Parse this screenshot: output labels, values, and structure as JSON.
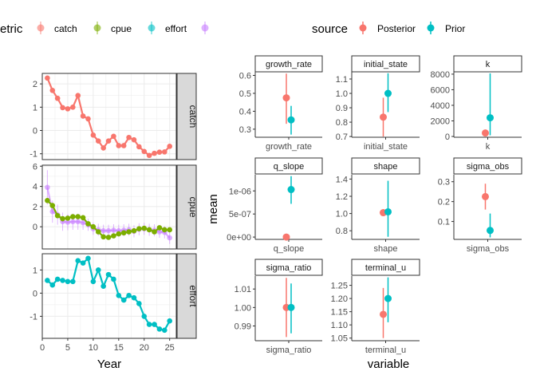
{
  "colors": {
    "catch": "#F8766D",
    "cpue": "#7CAE00",
    "effort": "#00BFC4",
    "unknown": "#C77CFF",
    "posterior": "#F8766D",
    "prior": "#00BFC4",
    "strip_bg": "#D9D9D9",
    "grid": "#EBEBEB",
    "axis_text": "#4D4D4D"
  },
  "chart_data": [
    {
      "type": "line",
      "facet_by": "row",
      "title": "",
      "xlabel": "Year",
      "ylabel": "",
      "legend": {
        "title": "etric",
        "position": "top-left",
        "entries": [
          "catch",
          "cpue",
          "effort",
          ""
        ]
      },
      "x_ticks": [
        0,
        5,
        10,
        15,
        20,
        25
      ],
      "xlim": [
        0,
        26.3
      ],
      "panels": [
        {
          "strip": "catch",
          "ylim": [
            -1.25,
            2.45
          ],
          "y_ticks": [
            -1,
            0,
            1,
            2
          ],
          "series": [
            {
              "name": "catch",
              "color_key": "catch",
              "x": [
                1,
                2,
                3,
                4,
                5,
                6,
                7,
                8,
                9,
                10,
                11,
                12,
                13,
                14,
                15,
                16,
                17,
                18,
                19,
                20,
                21,
                22,
                23,
                24,
                25
              ],
              "y": [
                2.25,
                1.72,
                1.38,
                0.98,
                0.93,
                1.0,
                1.5,
                0.62,
                0.5,
                -0.2,
                -0.45,
                -0.75,
                -0.45,
                -0.25,
                -0.65,
                -0.65,
                -0.3,
                -0.4,
                -0.7,
                -0.9,
                -1.07,
                -0.98,
                -0.93,
                -0.92,
                -0.68
              ]
            }
          ]
        },
        {
          "strip": "cpue",
          "ylim": [
            -2.2,
            6.1
          ],
          "y_ticks": [
            0,
            2,
            4,
            6
          ],
          "series": [
            {
              "name": "",
              "color_key": "unknown",
              "x": [
                1,
                2,
                3,
                4,
                5,
                6,
                7,
                8,
                9,
                10,
                11,
                12,
                13,
                14,
                15,
                16,
                17,
                18,
                19,
                20,
                21,
                22,
                23,
                24,
                25
              ],
              "y": [
                3.9,
                1.5,
                1.2,
                0.5,
                0.45,
                0.5,
                0.5,
                0.4,
                0.2,
                -0.2,
                -0.3,
                -0.4,
                -0.4,
                -0.35,
                -0.4,
                -0.35,
                -0.3,
                -0.45,
                -0.25,
                -0.2,
                -0.3,
                -0.35,
                -0.5,
                -0.55,
                -1.1
              ],
              "err": [
                1.7,
                1.1,
                1.0,
                0.9,
                0.8,
                0.8,
                0.8,
                0.7,
                0.6,
                0.6,
                0.6,
                0.6,
                0.6,
                0.6,
                0.6,
                0.6,
                0.6,
                0.6,
                0.6,
                0.6,
                0.6,
                0.6,
                0.6,
                0.6,
                0.6
              ]
            },
            {
              "name": "cpue",
              "color_key": "cpue",
              "x": [
                1,
                2,
                3,
                4,
                5,
                6,
                7,
                8,
                9,
                10,
                11,
                12,
                13,
                14,
                15,
                16,
                17,
                18,
                19,
                20,
                21,
                22,
                23,
                24,
                25
              ],
              "y": [
                2.6,
                2.1,
                1.1,
                0.8,
                0.85,
                1.0,
                1.0,
                0.9,
                0.3,
                0.0,
                -0.5,
                -1.0,
                -1.05,
                -0.9,
                -0.7,
                -0.6,
                -0.5,
                -0.4,
                -0.2,
                -0.15,
                -0.3,
                -0.5,
                -0.1,
                -0.3,
                -0.3
              ]
            }
          ]
        },
        {
          "strip": "effort",
          "ylim": [
            -1.95,
            1.7
          ],
          "y_ticks": [
            -1,
            0,
            1
          ],
          "series": [
            {
              "name": "effort",
              "color_key": "effort",
              "x": [
                1,
                2,
                3,
                4,
                5,
                6,
                7,
                8,
                9,
                10,
                11,
                12,
                13,
                14,
                15,
                16,
                17,
                18,
                19,
                20,
                21,
                22,
                23,
                24,
                25
              ],
              "y": [
                0.55,
                0.35,
                0.6,
                0.55,
                0.5,
                0.5,
                1.4,
                1.3,
                1.5,
                0.5,
                1.0,
                0.3,
                0.8,
                0.6,
                -0.1,
                -0.3,
                -0.1,
                -0.2,
                -0.45,
                -1.0,
                -1.35,
                -1.35,
                -1.55,
                -1.6,
                -1.2
              ]
            }
          ]
        }
      ]
    },
    {
      "type": "scatter",
      "facet_by": "wrap",
      "title": "",
      "xlabel": "variable",
      "ylabel": "mean",
      "legend": {
        "title": "source",
        "position": "top",
        "entries": [
          "Posterior",
          "Prior"
        ]
      },
      "panels": [
        {
          "strip": "growth_rate",
          "x_label": "growth_rate",
          "ylim": [
            0.255,
            0.62
          ],
          "y_ticks": [
            0.3,
            0.4,
            0.5,
            0.6
          ],
          "y_tick_labels": [
            "0.3",
            "0.4",
            "0.5",
            "0.6"
          ],
          "points": [
            {
              "source": "Posterior",
              "mean": 0.475,
              "lo": 0.33,
              "hi": 0.61
            },
            {
              "source": "Prior",
              "mean": 0.352,
              "lo": 0.27,
              "hi": 0.43
            }
          ]
        },
        {
          "strip": "initial_state",
          "x_label": "initial_state",
          "ylim": [
            0.695,
            1.15
          ],
          "y_ticks": [
            0.7,
            0.8,
            0.9,
            1.0,
            1.1
          ],
          "y_tick_labels": [
            "0.7",
            "0.8",
            "0.9",
            "1.0",
            "1.1"
          ],
          "points": [
            {
              "source": "Posterior",
              "mean": 0.835,
              "lo": 0.7,
              "hi": 0.97
            },
            {
              "source": "Prior",
              "mean": 1.0,
              "lo": 0.87,
              "hi": 1.14
            }
          ]
        },
        {
          "strip": "k",
          "x_label": "k",
          "ylim": [
            -100,
            8300
          ],
          "y_ticks": [
            0,
            2000,
            4000,
            6000,
            8000
          ],
          "y_tick_labels": [
            "0",
            "2000",
            "4000",
            "6000",
            "8000"
          ],
          "points": [
            {
              "source": "Posterior",
              "mean": 450,
              "lo": 150,
              "hi": 800
            },
            {
              "source": "Prior",
              "mean": 2400,
              "lo": 150,
              "hi": 8100
            }
          ]
        },
        {
          "strip": "q_slope",
          "x_label": "q_slope",
          "ylim": [
            -5e-08,
            1.35e-06
          ],
          "y_ticks": [
            0,
            5e-07,
            1e-06
          ],
          "y_tick_labels": [
            "0e+00",
            "5e-07",
            "1e-06"
          ],
          "points": [
            {
              "source": "Posterior",
              "mean": 0.0,
              "lo": 0.0,
              "hi": 0.0
            },
            {
              "source": "Prior",
              "mean": 1.03e-06,
              "lo": 7.2e-07,
              "hi": 1.32e-06
            }
          ]
        },
        {
          "strip": "shape",
          "x_label": "shape",
          "ylim": [
            0.7,
            1.45
          ],
          "y_ticks": [
            0.8,
            1.0,
            1.2,
            1.4
          ],
          "y_tick_labels": [
            "0.8",
            "1.0",
            "1.2",
            "1.4"
          ],
          "points": [
            {
              "source": "Posterior",
              "mean": 1.01,
              "lo": 0.99,
              "hi": 1.03
            },
            {
              "source": "Prior",
              "mean": 1.02,
              "lo": 0.73,
              "hi": 1.38
            }
          ]
        },
        {
          "strip": "sigma_obs",
          "x_label": "sigma_obs",
          "ylim": [
            0.01,
            0.335
          ],
          "y_ticks": [
            0.1,
            0.2,
            0.3
          ],
          "y_tick_labels": [
            "0.1",
            "0.2",
            "0.3"
          ],
          "points": [
            {
              "source": "Posterior",
              "mean": 0.225,
              "lo": 0.16,
              "hi": 0.29
            },
            {
              "source": "Prior",
              "mean": 0.055,
              "lo": 0.02,
              "hi": 0.14
            }
          ]
        },
        {
          "strip": "sigma_ratio",
          "x_label": "sigma_ratio",
          "ylim": [
            0.982,
            1.017
          ],
          "y_ticks": [
            0.99,
            1.0,
            1.01
          ],
          "y_tick_labels": [
            "0.99",
            "1.00",
            "1.01"
          ],
          "points": [
            {
              "source": "Posterior",
              "mean": 1.0,
              "lo": 0.984,
              "hi": 1.016
            },
            {
              "source": "Prior",
              "mean": 1.0,
              "lo": 0.986,
              "hi": 1.013
            }
          ]
        },
        {
          "strip": "terminal_u",
          "x_label": "terminal_u",
          "ylim": [
            1.04,
            1.285
          ],
          "y_ticks": [
            1.05,
            1.1,
            1.15,
            1.2,
            1.25
          ],
          "y_tick_labels": [
            "1.05",
            "1.10",
            "1.15",
            "1.20",
            "1.25"
          ],
          "points": [
            {
              "source": "Posterior",
              "mean": 1.14,
              "lo": 1.05,
              "hi": 1.24
            },
            {
              "source": "Prior",
              "mean": 1.2,
              "lo": 1.11,
              "hi": 1.28
            }
          ]
        }
      ]
    }
  ]
}
